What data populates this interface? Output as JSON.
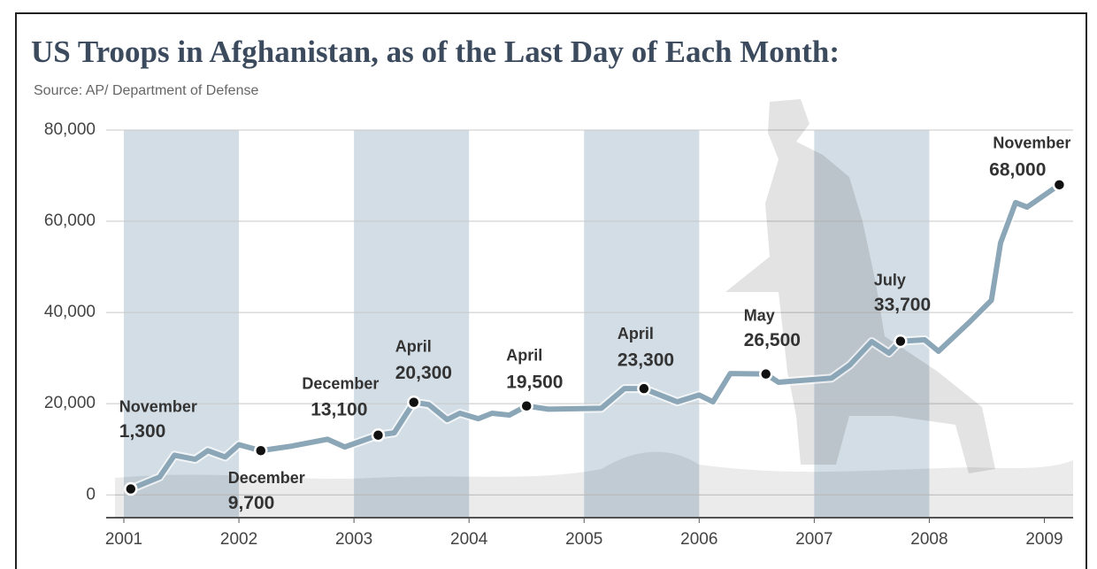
{
  "chart_data": {
    "type": "line",
    "title": "US Troops in Afghanistan, as of the Last Day of Each Month:",
    "subtitle": "Source: AP/ Department of Defense",
    "color": "#8ba6b7",
    "shade_color": "#d2dde5",
    "shaded_years": [
      2001,
      2003,
      2005,
      2007
    ],
    "xlim": [
      2001,
      2009.25
    ],
    "xticks": [
      2001,
      2002,
      2003,
      2004,
      2005,
      2006,
      2007,
      2008,
      2009
    ],
    "ylim": [
      -5000,
      80000
    ],
    "yticks": [
      0,
      {
        "value": 20000,
        "label": "20,000"
      },
      {
        "value": 40000,
        "label": "40,000"
      },
      {
        "value": 60000,
        "label": "60,000"
      },
      {
        "value": 80000,
        "label": "80,000"
      }
    ],
    "grid": true,
    "x": [
      2001.06,
      2001.31,
      2001.44,
      2001.62,
      2001.73,
      2001.88,
      2002.0,
      2002.19,
      2002.46,
      2002.77,
      2002.92,
      2003.21,
      2003.35,
      2003.52,
      2003.65,
      2003.81,
      2003.92,
      2004.08,
      2004.2,
      2004.35,
      2004.5,
      2004.69,
      2005.15,
      2005.35,
      2005.52,
      2005.81,
      2006.0,
      2006.12,
      2006.27,
      2006.58,
      2006.69,
      2007.15,
      2007.31,
      2007.5,
      2007.65,
      2007.75,
      2007.96,
      2008.08,
      2008.35,
      2008.54,
      2008.62,
      2008.75,
      2008.85,
      2009.13
    ],
    "values": [
      1300,
      3900,
      8700,
      7800,
      9700,
      8300,
      11000,
      9700,
      10700,
      12200,
      10500,
      13100,
      13600,
      20300,
      19800,
      16500,
      17900,
      16700,
      17900,
      17500,
      19500,
      18800,
      19000,
      23300,
      23300,
      20400,
      21900,
      20400,
      26600,
      26500,
      24700,
      25600,
      28500,
      33600,
      31100,
      33700,
      34000,
      31500,
      37900,
      42700,
      55300,
      64100,
      63100,
      68000
    ],
    "highlights": [
      {
        "x": 2001.06,
        "value": 1300,
        "text": "November",
        "value_label": "1,300"
      },
      {
        "x": 2002.19,
        "value": 9700,
        "text": "December",
        "value_label": "9,700"
      },
      {
        "x": 2003.21,
        "value": 13100,
        "text": "December",
        "value_label": "13,100"
      },
      {
        "x": 2003.52,
        "value": 20300,
        "text": "April",
        "value_label": "20,300"
      },
      {
        "x": 2004.5,
        "value": 19500,
        "text": "April",
        "value_label": "19,500"
      },
      {
        "x": 2005.52,
        "value": 23300,
        "text": "April",
        "value_label": "23,300"
      },
      {
        "x": 2006.58,
        "value": 26500,
        "text": "May",
        "value_label": "26,500"
      },
      {
        "x": 2007.75,
        "value": 33700,
        "text": "July",
        "value_label": "33,700"
      },
      {
        "x": 2009.13,
        "value": 68000,
        "text": "November",
        "value_label": "68,000"
      }
    ]
  }
}
